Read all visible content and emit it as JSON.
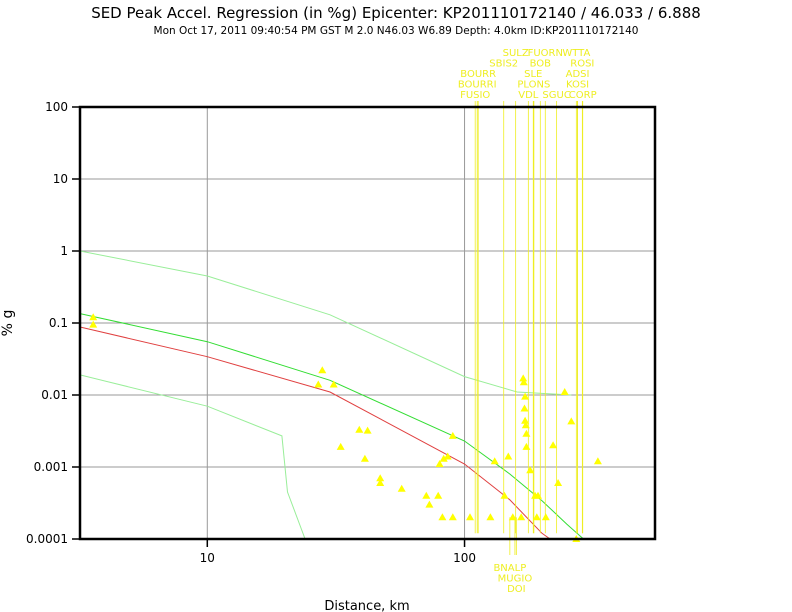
{
  "header": {
    "title": "SED Peak Accel. Regression (in %g) Epicenter: KP201110172140 / 46.033 / 6.888",
    "subtitle": "Mon Oct 17, 2011 09:40:54 PM GST   M 2.0   N46.03 W6.89   Depth: 4.0km   ID:KP201110172140"
  },
  "colors": {
    "points": "#ffff00",
    "labels": "#eeee22",
    "regression": "#e04040",
    "upper_curve": "#33dd33",
    "confidence": "#99ee99",
    "grid": "#999999",
    "frame": "#000000"
  },
  "chart_data": {
    "type": "scatter",
    "xlabel": "Distance, km",
    "ylabel": "% g",
    "xscale": "log",
    "yscale": "log",
    "xlim": [
      3.2,
      550
    ],
    "ylim": [
      0.0001,
      100
    ],
    "x_ticks": [
      10,
      100
    ],
    "x_tick_labels": [
      "10",
      "100"
    ],
    "y_ticks": [
      100,
      10,
      1,
      0.1,
      0.01,
      0.001,
      0.0001
    ],
    "y_tick_labels": [
      "100",
      "10",
      "1",
      "0.1",
      "0.01",
      "0.001",
      "0.0001"
    ],
    "grid": true,
    "points": [
      [
        3.6,
        0.12
      ],
      [
        3.6,
        0.095
      ],
      [
        27,
        0.014
      ],
      [
        28,
        0.022
      ],
      [
        31,
        0.014
      ],
      [
        33,
        0.0019
      ],
      [
        39,
        0.0033
      ],
      [
        42,
        0.0032
      ],
      [
        41,
        0.0013
      ],
      [
        47,
        0.0007
      ],
      [
        47,
        0.0006
      ],
      [
        57,
        0.0005
      ],
      [
        71,
        0.0004
      ],
      [
        73,
        0.0003
      ],
      [
        79,
        0.0004
      ],
      [
        80,
        0.0011
      ],
      [
        83,
        0.0013
      ],
      [
        86,
        0.0014
      ],
      [
        90,
        0.0027
      ],
      [
        82,
        0.0002
      ],
      [
        90,
        0.0002
      ],
      [
        105,
        0.0002
      ],
      [
        126,
        0.0002
      ],
      [
        131,
        0.0012
      ],
      [
        143,
        0.0004
      ],
      [
        148,
        0.0014
      ],
      [
        154,
        0.0002
      ],
      [
        166,
        0.0002
      ],
      [
        169,
        0.017
      ],
      [
        170,
        0.015
      ],
      [
        172,
        0.0095
      ],
      [
        171,
        0.0065
      ],
      [
        172,
        0.0044
      ],
      [
        173,
        0.0038
      ],
      [
        174,
        0.0029
      ],
      [
        174,
        0.0019
      ],
      [
        180,
        0.0009
      ],
      [
        188,
        0.0004
      ],
      [
        193,
        0.0004
      ],
      [
        191,
        0.0002
      ],
      [
        207,
        0.0002
      ],
      [
        221,
        0.002
      ],
      [
        231,
        0.0006
      ],
      [
        245,
        0.011
      ],
      [
        260,
        0.0043
      ],
      [
        272,
        0.0001
      ],
      [
        330,
        0.0012
      ]
    ],
    "series": [
      {
        "values": [
          [
            3.2,
            0.088
          ],
          [
            10,
            0.034
          ],
          [
            30,
            0.011
          ],
          [
            100,
            0.0011
          ],
          [
            150,
            0.00035
          ],
          [
            200,
            0.00012
          ],
          [
            215,
            0.0001
          ]
        ]
      },
      {
        "values": [
          [
            3.2,
            0.135
          ],
          [
            10,
            0.055
          ],
          [
            30,
            0.016
          ],
          [
            100,
            0.0023
          ],
          [
            150,
            0.0008
          ],
          [
            200,
            0.00034
          ],
          [
            250,
            0.00016
          ],
          [
            290,
            0.0001
          ]
        ]
      },
      {
        "values": [
          [
            3.2,
            1.0
          ],
          [
            10,
            0.45
          ],
          [
            30,
            0.13
          ],
          [
            100,
            0.018
          ],
          [
            160,
            0.011
          ],
          [
            260,
            0.01
          ]
        ]
      },
      {
        "values": [
          [
            3.2,
            0.019
          ],
          [
            10,
            0.007
          ],
          [
            19.5,
            0.0027
          ],
          [
            20.5,
            0.00045
          ],
          [
            24,
            0.0001
          ]
        ]
      }
    ],
    "station_labels_top": [
      {
        "text": "SULZ",
        "x": 158,
        "row": 5
      },
      {
        "text": "FUORN",
        "x": 206,
        "row": 5
      },
      {
        "text": "WTTA",
        "x": 272,
        "row": 5
      },
      {
        "text": "SBIS2",
        "x": 142,
        "row": 4
      },
      {
        "text": "BOB",
        "x": 197,
        "row": 4
      },
      {
        "text": "ROSI",
        "x": 287,
        "row": 4
      },
      {
        "text": "BOURR",
        "x": 113,
        "row": 3
      },
      {
        "text": "SLE",
        "x": 185,
        "row": 3
      },
      {
        "text": "ADSI",
        "x": 275,
        "row": 3
      },
      {
        "text": "BOURRI",
        "x": 112,
        "row": 2
      },
      {
        "text": "PLONS",
        "x": 186,
        "row": 2
      },
      {
        "text": "KOSI",
        "x": 275,
        "row": 2
      },
      {
        "text": "FUSIO",
        "x": 110,
        "row": 1
      },
      {
        "text": "VDL",
        "x": 177,
        "row": 1
      },
      {
        "text": "SGUC",
        "x": 228,
        "row": 1
      },
      {
        "text": "CORP",
        "x": 288,
        "row": 1
      }
    ],
    "station_labels_bottom": [
      {
        "text": "BNALP",
        "x": 150,
        "row": 1
      },
      {
        "text": "MUGIO",
        "x": 157,
        "row": 2
      },
      {
        "text": "DOI",
        "x": 159,
        "row": 3
      }
    ]
  }
}
